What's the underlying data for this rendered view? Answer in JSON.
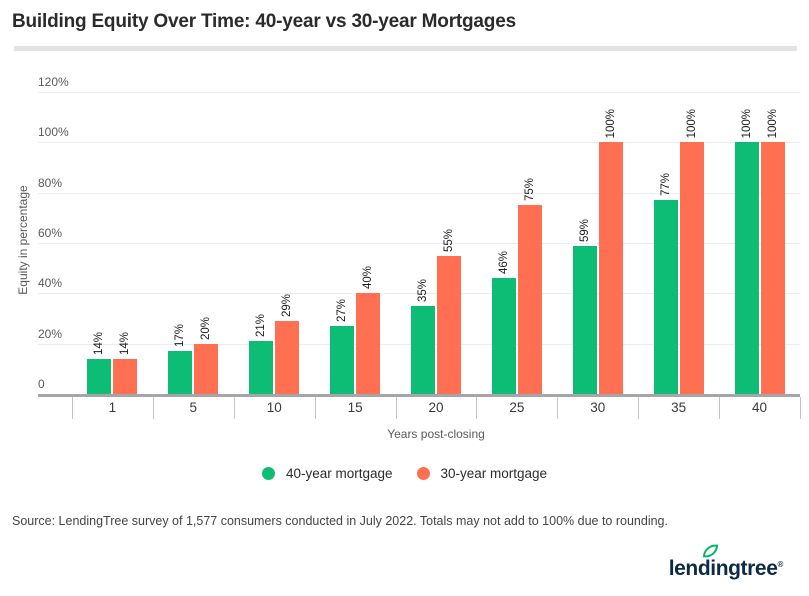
{
  "page": {
    "title": "Building Equity Over Time: 40-year vs 30-year Mortgages",
    "source": "Source: LendingTree survey of 1,577 consumers conducted in July 2022. Totals may not add to 100% due to rounding.",
    "logo": {
      "text": "lendingtree",
      "registered_mark": "®"
    }
  },
  "chart_data": {
    "type": "bar",
    "title": "Building Equity Over Time: 40-year vs 30-year Mortgages",
    "categories": [
      "1",
      "5",
      "10",
      "15",
      "20",
      "25",
      "30",
      "35",
      "40"
    ],
    "series": [
      {
        "name": "40-year mortgage",
        "color": "#0dbd75",
        "values": [
          14,
          17,
          21,
          27,
          35,
          46,
          59,
          77,
          100
        ],
        "labels": [
          "14%",
          "17%",
          "21%",
          "27%",
          "35%",
          "46%",
          "59%",
          "77%",
          "100%"
        ]
      },
      {
        "name": "30-year mortgage",
        "color": "#ff7052",
        "values": [
          14,
          20,
          29,
          40,
          55,
          75,
          100,
          100,
          100
        ],
        "labels": [
          "14%",
          "20%",
          "29%",
          "40%",
          "55%",
          "75%",
          "100%",
          "100%",
          "100%"
        ]
      }
    ],
    "xlabel": "Years post-closing",
    "ylabel": "Equity in percentage",
    "ylim": [
      0,
      120
    ],
    "yticks": [
      0,
      20,
      40,
      60,
      80,
      100,
      120
    ],
    "ytick_labels": [
      "0",
      "20%",
      "40%",
      "60%",
      "80%",
      "100%",
      "120%"
    ],
    "grid": true,
    "legend_position": "bottom",
    "data_labels_rotated": true
  },
  "colors": {
    "series_40yr": "#0dbd75",
    "series_30yr": "#ff7052",
    "title_text": "#2b2b2b",
    "divider": "#e3e3e3",
    "gridline": "#ededed",
    "axis_line": "#a6a6a6",
    "tick_separator": "#c6c6c6",
    "axis_label_gray": "#5a5a5a",
    "logo_navy": "#0d2b45",
    "logo_leaf_green": "#00b964"
  }
}
